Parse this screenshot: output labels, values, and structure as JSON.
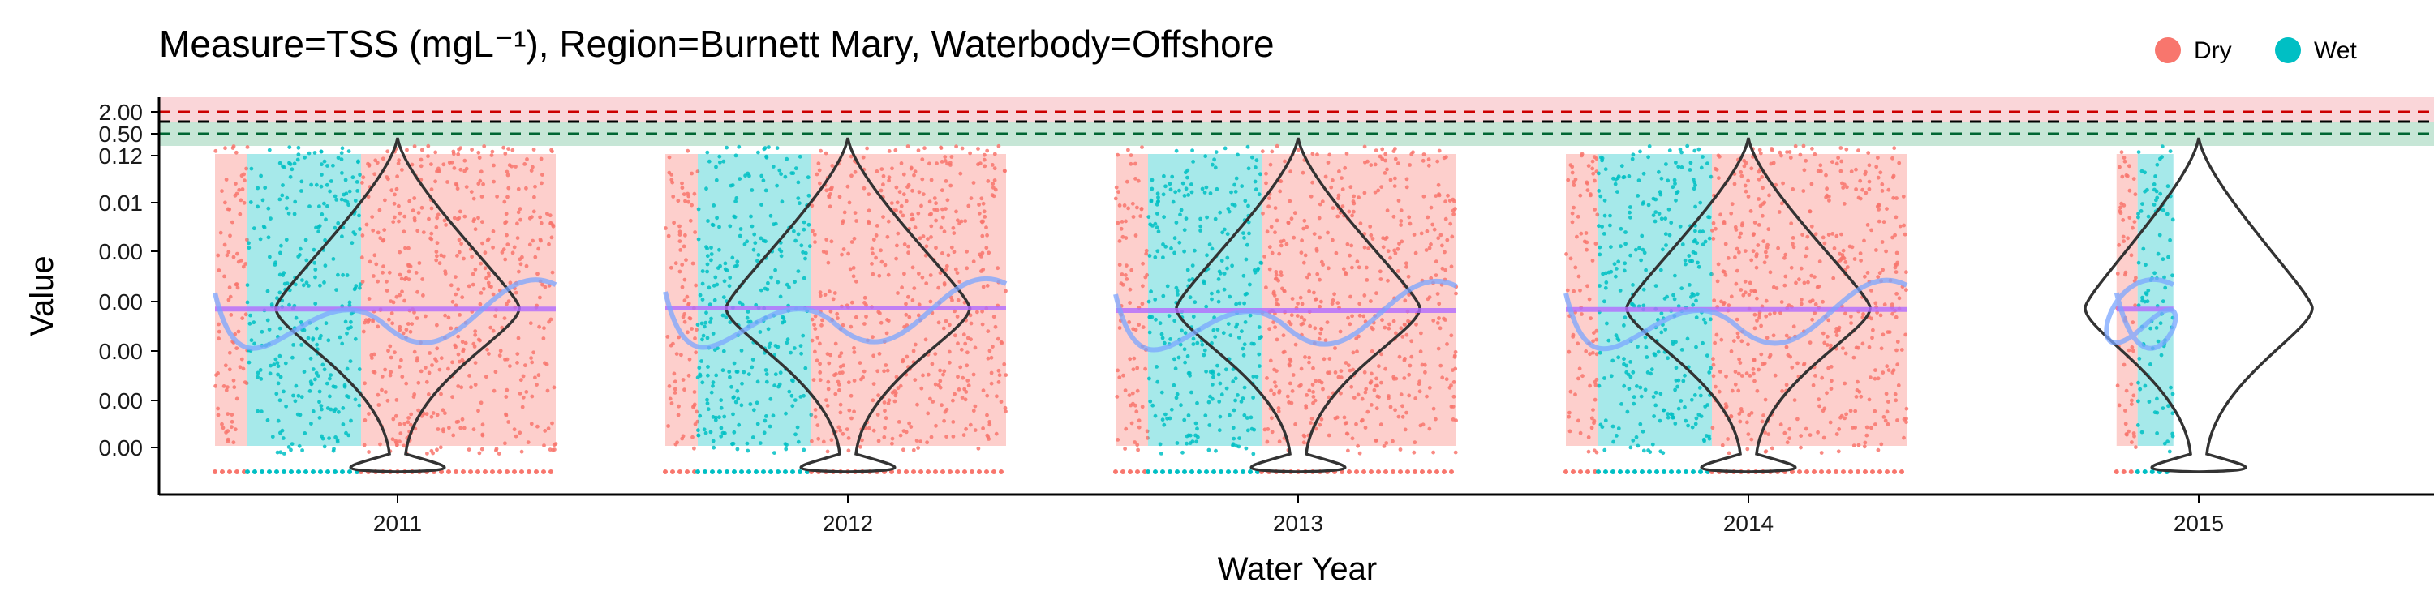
{
  "chart_data": {
    "type": "scatter",
    "title": "Measure=TSS (mgL⁻¹), Region=Burnett Mary, Waterbody=Offshore",
    "xlabel": "Water Year",
    "ylabel": "Value",
    "categories": [
      "2011",
      "2012",
      "2013",
      "2014",
      "2015"
    ],
    "y_tick_labels": [
      "2.00",
      "0.50",
      "0.12",
      "0.01",
      "0.00",
      "0.00",
      "0.00",
      "0.00",
      "0.00"
    ],
    "legend": {
      "position": "top-right",
      "entries": [
        {
          "label": "Dry",
          "color": "#F8766D"
        },
        {
          "label": "Wet",
          "color": "#00BFC4"
        }
      ]
    },
    "series": [
      {
        "name": "Dry",
        "color": "#F8766D"
      },
      {
        "name": "Wet",
        "color": "#00BFC4"
      }
    ],
    "years": [
      {
        "year": "2011",
        "dry_early": [
          0.7,
          0.74
        ],
        "wet": [
          0.74,
          0.82
        ],
        "dry": [
          0.82,
          1.3
        ],
        "trend_level": 0.52
      },
      {
        "year": "2012",
        "dry_early": [
          0.7,
          0.74
        ],
        "wet": [
          0.74,
          0.82
        ],
        "dry": [
          0.82,
          1.3
        ],
        "trend_level": 0.5
      },
      {
        "year": "2013",
        "dry_early": [
          0.7,
          0.74
        ],
        "wet": [
          0.74,
          0.82
        ],
        "dry": [
          0.82,
          1.3
        ],
        "trend_level": 0.55
      },
      {
        "year": "2014",
        "dry_early": [
          0.7,
          0.74
        ],
        "wet": [
          0.74,
          0.82
        ],
        "dry": [
          0.82,
          1.3
        ],
        "trend_level": 0.53
      },
      {
        "year": "2015",
        "dry_early": [
          0.72,
          0.75
        ],
        "wet": [
          0.75,
          0.78
        ],
        "dry": [
          0.78,
          0.78
        ],
        "trend_level": 0.52
      }
    ],
    "reference_lines": [
      {
        "color": "#cc0000",
        "style": "dashed",
        "band_color": "#f8c8cc"
      },
      {
        "color": "#000000",
        "style": "dashed"
      },
      {
        "color": "#006633",
        "style": "dashed",
        "band_color": "#b8e0cc"
      }
    ],
    "grid": false
  }
}
